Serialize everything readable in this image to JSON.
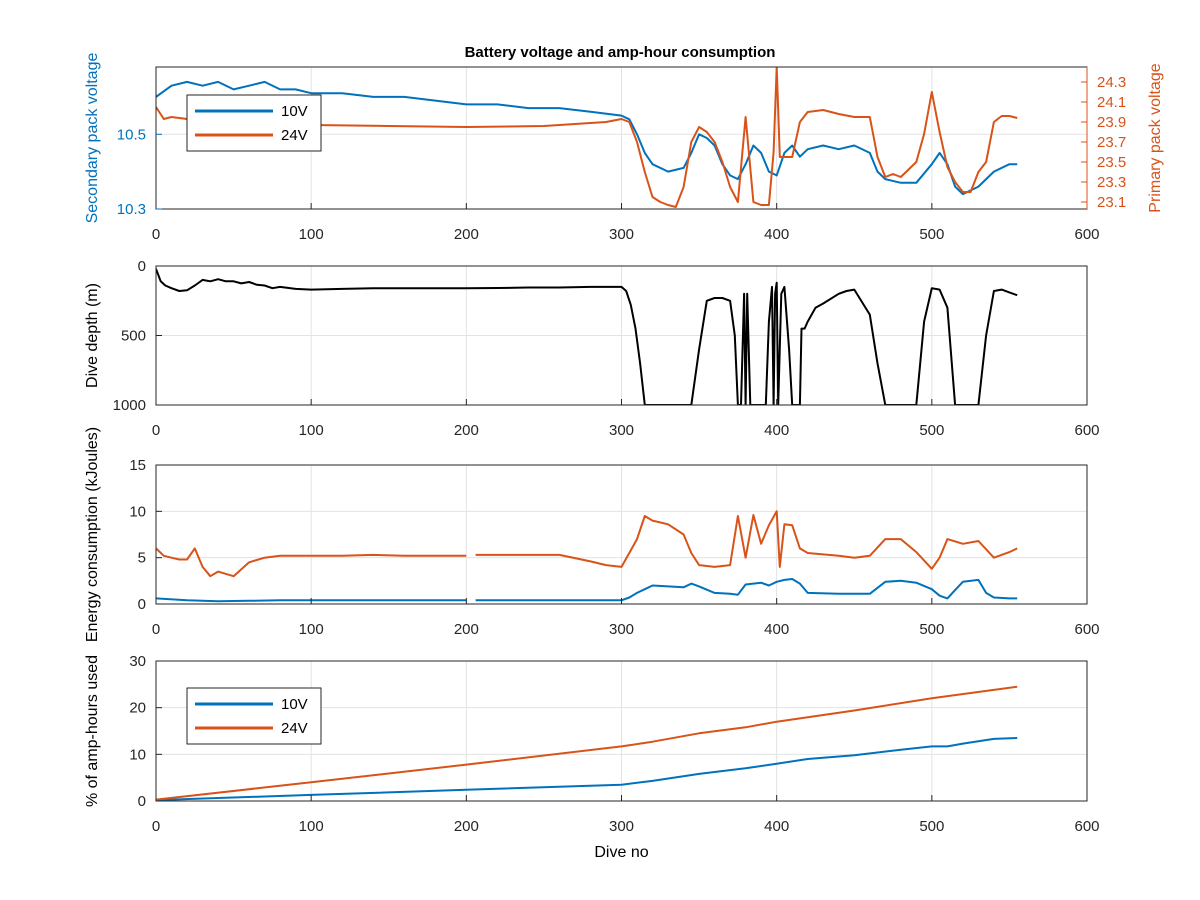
{
  "figure": {
    "title": "Battery voltage and amp-hour consumption"
  },
  "colors": {
    "series_10v": "#0072BD",
    "series_24v": "#D95319",
    "depth": "#000000",
    "grid": "#e3e3e3",
    "axis": "#262626"
  },
  "chart_data": [
    {
      "type": "line",
      "title": "Battery voltage and amp-hour consumption",
      "xlabel": "",
      "ylabel": "Secondary pack voltage",
      "y2label": "Primary pack voltage",
      "xlim": [
        0,
        600
      ],
      "ylim": [
        10.3,
        10.68
      ],
      "y2lim": [
        23.03,
        24.45
      ],
      "xticks": [
        "0",
        "100",
        "200",
        "300",
        "400",
        "500",
        "600"
      ],
      "yticks": [
        "10.3",
        "10.5"
      ],
      "y2ticks": [
        "23.1",
        "23.3",
        "23.5",
        "23.7",
        "23.9",
        "24.1",
        "24.3"
      ],
      "grid": true,
      "legend": {
        "position": "top-left",
        "entries": [
          "10V",
          "24V"
        ]
      },
      "series": [
        {
          "name": "10V",
          "axis": "left",
          "x": [
            0,
            10,
            20,
            30,
            40,
            50,
            60,
            70,
            80,
            90,
            100,
            120,
            140,
            160,
            180,
            200,
            220,
            240,
            260,
            280,
            300,
            305,
            310,
            315,
            320,
            330,
            340,
            345,
            350,
            355,
            360,
            365,
            370,
            375,
            380,
            385,
            390,
            395,
            400,
            405,
            410,
            415,
            420,
            430,
            440,
            450,
            460,
            465,
            470,
            480,
            490,
            500,
            505,
            510,
            515,
            520,
            530,
            540,
            550,
            555
          ],
          "y": [
            10.6,
            10.63,
            10.64,
            10.63,
            10.64,
            10.62,
            10.63,
            10.64,
            10.62,
            10.62,
            10.61,
            10.61,
            10.6,
            10.6,
            10.59,
            10.58,
            10.58,
            10.57,
            10.57,
            10.56,
            10.55,
            10.54,
            10.5,
            10.45,
            10.42,
            10.4,
            10.41,
            10.45,
            10.5,
            10.49,
            10.47,
            10.42,
            10.39,
            10.38,
            10.42,
            10.47,
            10.45,
            10.4,
            10.39,
            10.45,
            10.47,
            10.44,
            10.46,
            10.47,
            10.46,
            10.47,
            10.45,
            10.4,
            10.38,
            10.37,
            10.37,
            10.42,
            10.45,
            10.42,
            10.36,
            10.34,
            10.36,
            10.4,
            10.42,
            10.42
          ]
        },
        {
          "name": "24V",
          "axis": "right",
          "x": [
            0,
            5,
            10,
            20,
            30,
            50,
            100,
            150,
            200,
            250,
            290,
            300,
            305,
            310,
            315,
            320,
            325,
            330,
            335,
            340,
            345,
            350,
            355,
            360,
            365,
            370,
            375,
            380,
            385,
            390,
            395,
            398,
            400,
            402,
            405,
            410,
            415,
            420,
            430,
            440,
            450,
            460,
            465,
            470,
            475,
            480,
            490,
            495,
            500,
            505,
            510,
            515,
            520,
            525,
            530,
            535,
            540,
            545,
            550,
            555
          ],
          "y": [
            24.05,
            23.93,
            23.95,
            23.93,
            23.91,
            23.88,
            23.87,
            23.86,
            23.85,
            23.86,
            23.9,
            23.93,
            23.9,
            23.7,
            23.4,
            23.15,
            23.1,
            23.07,
            23.05,
            23.25,
            23.7,
            23.85,
            23.8,
            23.7,
            23.5,
            23.25,
            23.1,
            23.95,
            23.1,
            23.07,
            23.07,
            23.6,
            24.45,
            23.55,
            23.55,
            23.55,
            23.9,
            24.0,
            24.02,
            23.98,
            23.95,
            23.95,
            23.55,
            23.35,
            23.38,
            23.35,
            23.5,
            23.78,
            24.2,
            23.8,
            23.45,
            23.3,
            23.2,
            23.2,
            23.4,
            23.5,
            23.9,
            23.96,
            23.96,
            23.94
          ]
        }
      ]
    },
    {
      "type": "line",
      "title": "",
      "xlabel": "",
      "ylabel": "Dive depth (m)",
      "xlim": [
        0,
        600
      ],
      "ylim": [
        0,
        1000
      ],
      "y_reversed": true,
      "xticks": [
        "0",
        "100",
        "200",
        "300",
        "400",
        "500",
        "600"
      ],
      "yticks": [
        "0",
        "500",
        "1000"
      ],
      "grid": true,
      "series": [
        {
          "name": "",
          "axis": "left",
          "x": [
            0,
            3,
            6,
            10,
            15,
            20,
            25,
            30,
            35,
            40,
            45,
            50,
            55,
            60,
            65,
            70,
            75,
            80,
            90,
            100,
            120,
            140,
            160,
            180,
            200,
            220,
            240,
            260,
            280,
            300,
            303,
            306,
            309,
            312,
            315,
            320,
            330,
            340,
            345,
            350,
            355,
            360,
            365,
            370,
            373,
            375,
            377,
            379,
            380,
            381,
            383,
            385,
            387,
            390,
            393,
            395,
            397,
            398,
            399,
            400,
            401,
            403,
            405,
            408,
            410,
            413,
            415,
            416,
            418,
            420,
            425,
            430,
            440,
            445,
            450,
            460,
            465,
            470,
            480,
            490,
            495,
            500,
            505,
            510,
            515,
            520,
            525,
            530,
            535,
            540,
            545,
            550,
            555
          ],
          "y": [
            20,
            110,
            140,
            160,
            180,
            175,
            140,
            100,
            110,
            95,
            110,
            110,
            125,
            115,
            135,
            140,
            160,
            150,
            165,
            170,
            165,
            160,
            160,
            160,
            160,
            158,
            155,
            155,
            150,
            150,
            180,
            280,
            450,
            700,
            1000,
            1000,
            1000,
            1000,
            1000,
            600,
            250,
            230,
            230,
            250,
            500,
            1000,
            1000,
            200,
            1000,
            200,
            1000,
            1000,
            1000,
            1000,
            1000,
            400,
            150,
            1000,
            200,
            120,
            1000,
            200,
            150,
            600,
            1000,
            1000,
            1000,
            450,
            450,
            400,
            300,
            270,
            200,
            180,
            170,
            350,
            700,
            1000,
            1000,
            1000,
            400,
            160,
            170,
            300,
            1000,
            1000,
            1000,
            1000,
            500,
            180,
            170,
            190,
            210
          ]
        }
      ]
    },
    {
      "type": "line",
      "title": "",
      "xlabel": "",
      "ylabel": "Energy consumption (kJoules)",
      "xlim": [
        0,
        600
      ],
      "ylim": [
        0,
        15
      ],
      "xticks": [
        "0",
        "100",
        "200",
        "300",
        "400",
        "500",
        "600"
      ],
      "yticks": [
        "0",
        "5",
        "10",
        "15"
      ],
      "grid": true,
      "series": [
        {
          "name": "10V",
          "axis": "left",
          "x": [
            0,
            20,
            40,
            60,
            80,
            100,
            150,
            200,
            202,
            206,
            250,
            290,
            300,
            305,
            310,
            315,
            320,
            330,
            340,
            345,
            350,
            360,
            370,
            375,
            380,
            390,
            395,
            400,
            405,
            410,
            415,
            420,
            440,
            460,
            470,
            480,
            490,
            500,
            505,
            510,
            515,
            520,
            530,
            535,
            540,
            550,
            555
          ],
          "y": [
            0.6,
            0.4,
            0.3,
            0.35,
            0.4,
            0.4,
            0.4,
            0.4,
            null,
            0.4,
            0.4,
            0.4,
            0.4,
            0.7,
            1.2,
            1.6,
            2.0,
            1.9,
            1.8,
            2.2,
            1.9,
            1.2,
            1.1,
            1.0,
            2.1,
            2.3,
            2.0,
            2.4,
            2.6,
            2.7,
            2.2,
            1.2,
            1.1,
            1.1,
            2.4,
            2.5,
            2.3,
            1.6,
            0.9,
            0.6,
            1.5,
            2.4,
            2.6,
            1.2,
            0.7,
            0.6,
            0.6
          ]
        },
        {
          "name": "24V",
          "axis": "left",
          "x": [
            0,
            5,
            10,
            15,
            20,
            25,
            30,
            35,
            40,
            50,
            60,
            70,
            80,
            100,
            120,
            140,
            160,
            180,
            200,
            202,
            206,
            220,
            240,
            260,
            280,
            290,
            300,
            305,
            310,
            315,
            320,
            330,
            340,
            345,
            350,
            360,
            370,
            375,
            380,
            385,
            390,
            395,
            400,
            402,
            405,
            410,
            415,
            420,
            440,
            450,
            460,
            470,
            480,
            490,
            500,
            505,
            510,
            520,
            530,
            540,
            550,
            555
          ],
          "y": [
            6,
            5.2,
            5.0,
            4.8,
            4.8,
            6.0,
            4.0,
            3.0,
            3.5,
            3.0,
            4.5,
            5.0,
            5.2,
            5.2,
            5.2,
            5.3,
            5.2,
            5.2,
            5.2,
            null,
            5.3,
            5.3,
            5.3,
            5.3,
            4.6,
            4.2,
            4.0,
            5.5,
            7.0,
            9.5,
            9.0,
            8.6,
            7.5,
            5.5,
            4.2,
            4.0,
            4.2,
            9.5,
            5.0,
            9.6,
            6.5,
            8.5,
            10.0,
            4.0,
            8.6,
            8.5,
            6.0,
            5.5,
            5.2,
            5.0,
            5.2,
            7.0,
            7.0,
            5.6,
            3.8,
            5.0,
            7.0,
            6.5,
            6.8,
            5.0,
            5.6,
            6.0
          ]
        }
      ]
    },
    {
      "type": "line",
      "title": "",
      "xlabel": "Dive no",
      "ylabel": "% of amp-hours used",
      "xlim": [
        0,
        600
      ],
      "ylim": [
        0,
        30
      ],
      "xticks": [
        "0",
        "100",
        "200",
        "300",
        "400",
        "500",
        "600"
      ],
      "yticks": [
        "0",
        "10",
        "20",
        "30"
      ],
      "grid": true,
      "legend": {
        "position": "top-left",
        "entries": [
          "10V",
          "24V"
        ]
      },
      "series": [
        {
          "name": "10V",
          "axis": "left",
          "x": [
            0,
            100,
            200,
            300,
            320,
            350,
            380,
            400,
            420,
            450,
            480,
            500,
            510,
            520,
            540,
            555
          ],
          "y": [
            0.2,
            1.3,
            2.4,
            3.5,
            4.3,
            5.8,
            7.0,
            8.0,
            9.0,
            9.8,
            11.0,
            11.7,
            11.7,
            12.3,
            13.3,
            13.5
          ]
        },
        {
          "name": "24V",
          "axis": "left",
          "x": [
            0,
            100,
            200,
            300,
            320,
            350,
            380,
            400,
            450,
            500,
            555
          ],
          "y": [
            0.3,
            4.0,
            7.8,
            11.7,
            12.7,
            14.5,
            15.8,
            17.0,
            19.4,
            22.0,
            24.5
          ]
        }
      ]
    }
  ]
}
